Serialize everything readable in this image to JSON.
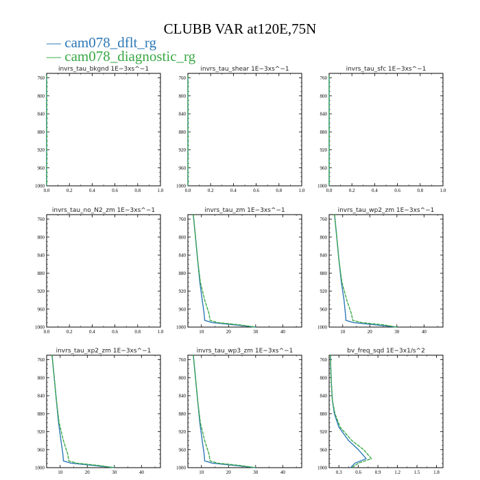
{
  "title": "CLUBB VAR at120E,75N",
  "legend": [
    {
      "label": "cam078_dflt_rg",
      "color": "#2c78b6"
    },
    {
      "label": "cam078_diagnostic_rg",
      "color": "#39a845"
    }
  ],
  "chart_data": [
    {
      "type": "line",
      "title": "invrs_tau_bkgnd",
      "units": "1E−3xs^−1",
      "xlim": [
        0,
        1
      ],
      "xticks": [
        0.0,
        0.2,
        0.4,
        0.6,
        0.8,
        1.0
      ],
      "xtick_labels": [
        "0.0",
        "0.2",
        "0.4",
        "0.6",
        "0.8",
        "1.0"
      ],
      "ylim": [
        1000,
        750
      ],
      "yticks": [
        760,
        800,
        840,
        880,
        920,
        960,
        1000
      ],
      "series": [
        {
          "color": "#2c78b6",
          "x": [
            0,
            0
          ],
          "y": [
            755,
            1000
          ]
        },
        {
          "color": "#39a845",
          "x": [
            0,
            0
          ],
          "y": [
            755,
            1000
          ]
        }
      ]
    },
    {
      "type": "line",
      "title": "invrs_tau_shear",
      "units": "1E−3xs^−1",
      "xlim": [
        0,
        1
      ],
      "xticks": [
        0.0,
        0.2,
        0.4,
        0.6,
        0.8,
        1.0
      ],
      "xtick_labels": [
        "0.0",
        "0.2",
        "0.4",
        "0.6",
        "0.8",
        "1.0"
      ],
      "ylim": [
        1000,
        750
      ],
      "yticks": [
        760,
        800,
        840,
        880,
        920,
        960,
        1000
      ],
      "series": [
        {
          "color": "#2c78b6",
          "x": [
            0,
            0
          ],
          "y": [
            755,
            1000
          ]
        },
        {
          "color": "#39a845",
          "x": [
            0,
            0
          ],
          "y": [
            755,
            1000
          ]
        }
      ]
    },
    {
      "type": "line",
      "title": "invrs_tau_sfc",
      "units": "1E−3xs^−1",
      "xlim": [
        0,
        1
      ],
      "xticks": [
        0.0,
        0.2,
        0.4,
        0.6,
        0.8,
        1.0
      ],
      "xtick_labels": [
        "0.0",
        "0.2",
        "0.4",
        "0.6",
        "0.8",
        "1.0"
      ],
      "ylim": [
        1000,
        750
      ],
      "yticks": [
        760,
        800,
        840,
        880,
        920,
        960,
        1000
      ],
      "series": [
        {
          "color": "#2c78b6",
          "x": [
            0,
            0
          ],
          "y": [
            755,
            1000
          ]
        },
        {
          "color": "#39a845",
          "x": [
            0,
            0
          ],
          "y": [
            755,
            1000
          ]
        }
      ]
    },
    {
      "type": "line",
      "title": "invrs_tau_no_N2_zm",
      "units": "1E−3xs^−1",
      "xlim": [
        0,
        1
      ],
      "xticks": [
        0.0,
        0.2,
        0.4,
        0.6,
        0.8,
        1.0
      ],
      "xtick_labels": [
        "0.0",
        "0.2",
        "0.4",
        "0.6",
        "0.8",
        "1.0"
      ],
      "ylim": [
        1000,
        750
      ],
      "yticks": [
        760,
        800,
        840,
        880,
        920,
        960,
        1000
      ],
      "series": []
    },
    {
      "type": "line",
      "title": "invrs_tau_zm",
      "units": "1E−3xs^−1",
      "xlim": [
        5,
        47
      ],
      "xticks": [
        10,
        20,
        30,
        40
      ],
      "xtick_labels": [
        "10",
        "20",
        "30",
        "40"
      ],
      "ylim": [
        1000,
        750
      ],
      "yticks": [
        760,
        800,
        840,
        880,
        920,
        960,
        1000
      ],
      "series": [
        {
          "color": "#2c78b6",
          "x": [
            7,
            7.8,
            8.6,
            9.4,
            10.3,
            11,
            11.2,
            14,
            22,
            30
          ],
          "y": [
            750,
            800,
            850,
            900,
            940,
            970,
            985,
            990,
            995,
            1000
          ]
        },
        {
          "color": "#39a845",
          "x": [
            7,
            7.8,
            8.6,
            9.6,
            11.2,
            12.8,
            13.2,
            16,
            24,
            30
          ],
          "y": [
            750,
            800,
            850,
            900,
            940,
            970,
            985,
            990,
            995,
            1000
          ]
        }
      ]
    },
    {
      "type": "line",
      "title": "invrs_tau_wp2_zm",
      "units": "1E−3xs^−1",
      "xlim": [
        5,
        47
      ],
      "xticks": [
        10,
        20,
        30,
        40
      ],
      "xtick_labels": [
        "10",
        "20",
        "30",
        "40"
      ],
      "ylim": [
        1000,
        750
      ],
      "yticks": [
        760,
        800,
        840,
        880,
        920,
        960,
        1000
      ],
      "series": [
        {
          "color": "#2c78b6",
          "x": [
            7,
            7.8,
            8.6,
            9.5,
            10.5,
            11,
            11.2,
            14,
            22,
            30
          ],
          "y": [
            750,
            800,
            850,
            900,
            940,
            970,
            985,
            990,
            995,
            1000
          ]
        },
        {
          "color": "#39a845",
          "x": [
            7,
            7.8,
            8.6,
            9.7,
            11.5,
            13.2,
            13.7,
            17,
            25,
            30
          ],
          "y": [
            750,
            800,
            850,
            900,
            940,
            970,
            985,
            990,
            995,
            1000
          ]
        }
      ]
    },
    {
      "type": "line",
      "title": "invrs_tau_xp2_zm",
      "units": "1E−3xs^−1",
      "xlim": [
        5,
        47
      ],
      "xticks": [
        10,
        20,
        30,
        40
      ],
      "xtick_labels": [
        "10",
        "20",
        "30",
        "40"
      ],
      "ylim": [
        1000,
        750
      ],
      "yticks": [
        760,
        800,
        840,
        880,
        920,
        960,
        1000
      ],
      "series": [
        {
          "color": "#2c78b6",
          "x": [
            7,
            7.8,
            8.6,
            9.4,
            10.3,
            11,
            11.2,
            14,
            22,
            30
          ],
          "y": [
            750,
            800,
            850,
            900,
            940,
            970,
            985,
            990,
            995,
            1000
          ]
        },
        {
          "color": "#39a845",
          "x": [
            7,
            7.8,
            8.6,
            9.6,
            11.2,
            12.8,
            13.2,
            16,
            24,
            30
          ],
          "y": [
            750,
            800,
            850,
            900,
            940,
            970,
            985,
            990,
            995,
            1000
          ]
        }
      ]
    },
    {
      "type": "line",
      "title": "invrs_tau_wp3_zm",
      "units": "1E−3xs^−1",
      "xlim": [
        5,
        47
      ],
      "xticks": [
        10,
        20,
        30,
        40
      ],
      "xtick_labels": [
        "10",
        "20",
        "30",
        "40"
      ],
      "ylim": [
        1000,
        750
      ],
      "yticks": [
        760,
        800,
        840,
        880,
        920,
        960,
        1000
      ],
      "series": [
        {
          "color": "#2c78b6",
          "x": [
            7,
            7.8,
            8.6,
            9.4,
            10.3,
            11,
            11.2,
            14,
            22,
            30
          ],
          "y": [
            750,
            800,
            850,
            900,
            940,
            970,
            985,
            990,
            995,
            1000
          ]
        },
        {
          "color": "#39a845",
          "x": [
            7,
            7.8,
            8.6,
            9.6,
            11.2,
            12.8,
            13.2,
            16,
            24,
            30
          ],
          "y": [
            750,
            800,
            850,
            900,
            940,
            970,
            985,
            990,
            995,
            1000
          ]
        }
      ]
    },
    {
      "type": "line",
      "title": "bv_freq_sqd",
      "units": "1E−3x1/s^2",
      "xlim": [
        0.15,
        1.9
      ],
      "xticks": [
        0.3,
        0.6,
        0.9,
        1.2,
        1.5,
        1.8
      ],
      "xtick_labels": [
        "0.3",
        "0.6",
        "0.9",
        "1.2",
        "1.5",
        "1.8"
      ],
      "ylim": [
        1000,
        750
      ],
      "yticks": [
        760,
        800,
        840,
        880,
        920,
        960,
        1000
      ],
      "series": [
        {
          "color": "#2c78b6",
          "x": [
            0.17,
            0.18,
            0.2,
            0.23,
            0.3,
            0.45,
            0.6,
            0.72,
            0.55,
            0.48
          ],
          "y": [
            750,
            800,
            850,
            880,
            910,
            940,
            960,
            980,
            990,
            1000
          ]
        },
        {
          "color": "#39a845",
          "x": [
            0.17,
            0.18,
            0.2,
            0.24,
            0.32,
            0.5,
            0.68,
            0.8,
            0.6,
            0.5
          ],
          "y": [
            750,
            800,
            850,
            880,
            910,
            940,
            960,
            980,
            990,
            1000
          ]
        }
      ]
    }
  ]
}
